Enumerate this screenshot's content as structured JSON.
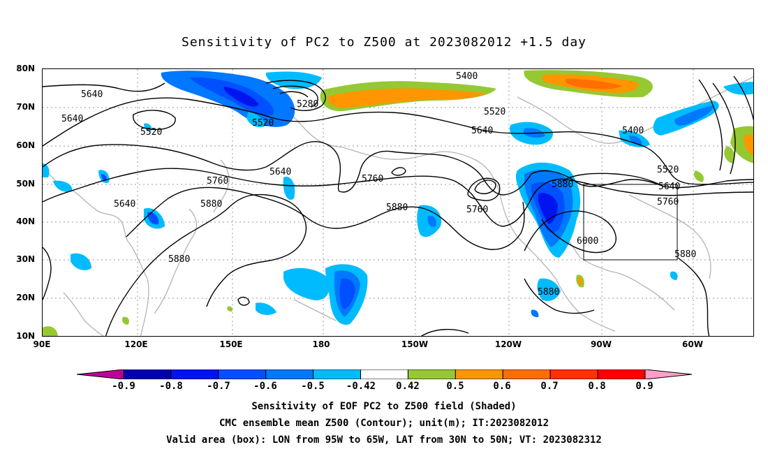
{
  "title": "Sensitivity of PC2 to Z500 at 2023082012 +1.5 day",
  "lat_labels": [
    "80N",
    "70N",
    "60N",
    "50N",
    "40N",
    "30N",
    "20N",
    "10N"
  ],
  "lon_labels": [
    "90E",
    "120E",
    "150E",
    "180",
    "150W",
    "120W",
    "90W",
    "60W"
  ],
  "colorbar": {
    "labels": [
      "-0.9",
      "-0.8",
      "-0.7",
      "-0.6",
      "-0.5",
      "-0.42",
      "0.42",
      "0.5",
      "0.6",
      "0.7",
      "0.8",
      "0.9"
    ],
    "colors": [
      "#bf0096",
      "#0000b4",
      "#0014f0",
      "#0050ff",
      "#0078ff",
      "#00bcff",
      "#ffffff",
      "#96c832",
      "#ff9600",
      "#ff6e00",
      "#ff3200",
      "#ff0000",
      "#ffa0c8"
    ]
  },
  "contour_labels": {
    "c5640a": "5640",
    "c5640b": "5640",
    "c5520a": "5520",
    "c5640c": "5640",
    "c5520b": "5520",
    "c5280": "5280",
    "c5400a": "5400",
    "c5520c": "5520",
    "c5640d": "5640",
    "c5400b": "5400",
    "c5520d": "5520",
    "c5640e": "5640",
    "c5760a": "5760",
    "c5880a": "5880",
    "c5640f": "5640",
    "c5760b": "5760",
    "c5880b": "5880",
    "c5760c": "5760",
    "c5880c": "5880",
    "c5760d": "5760",
    "c6000": "6000",
    "c5880d": "5880",
    "c5880e": "5880",
    "c5880f": "5880"
  },
  "captions": [
    "Sensitivity of EOF PC2 to Z500 field (Shaded)",
    "CMC ensemble mean Z500 (Contour); unit(m); IT:2023082012",
    "Valid area (box): LON from 95W to 65W, LAT from 30N to 50N; VT: 2023082312"
  ]
}
